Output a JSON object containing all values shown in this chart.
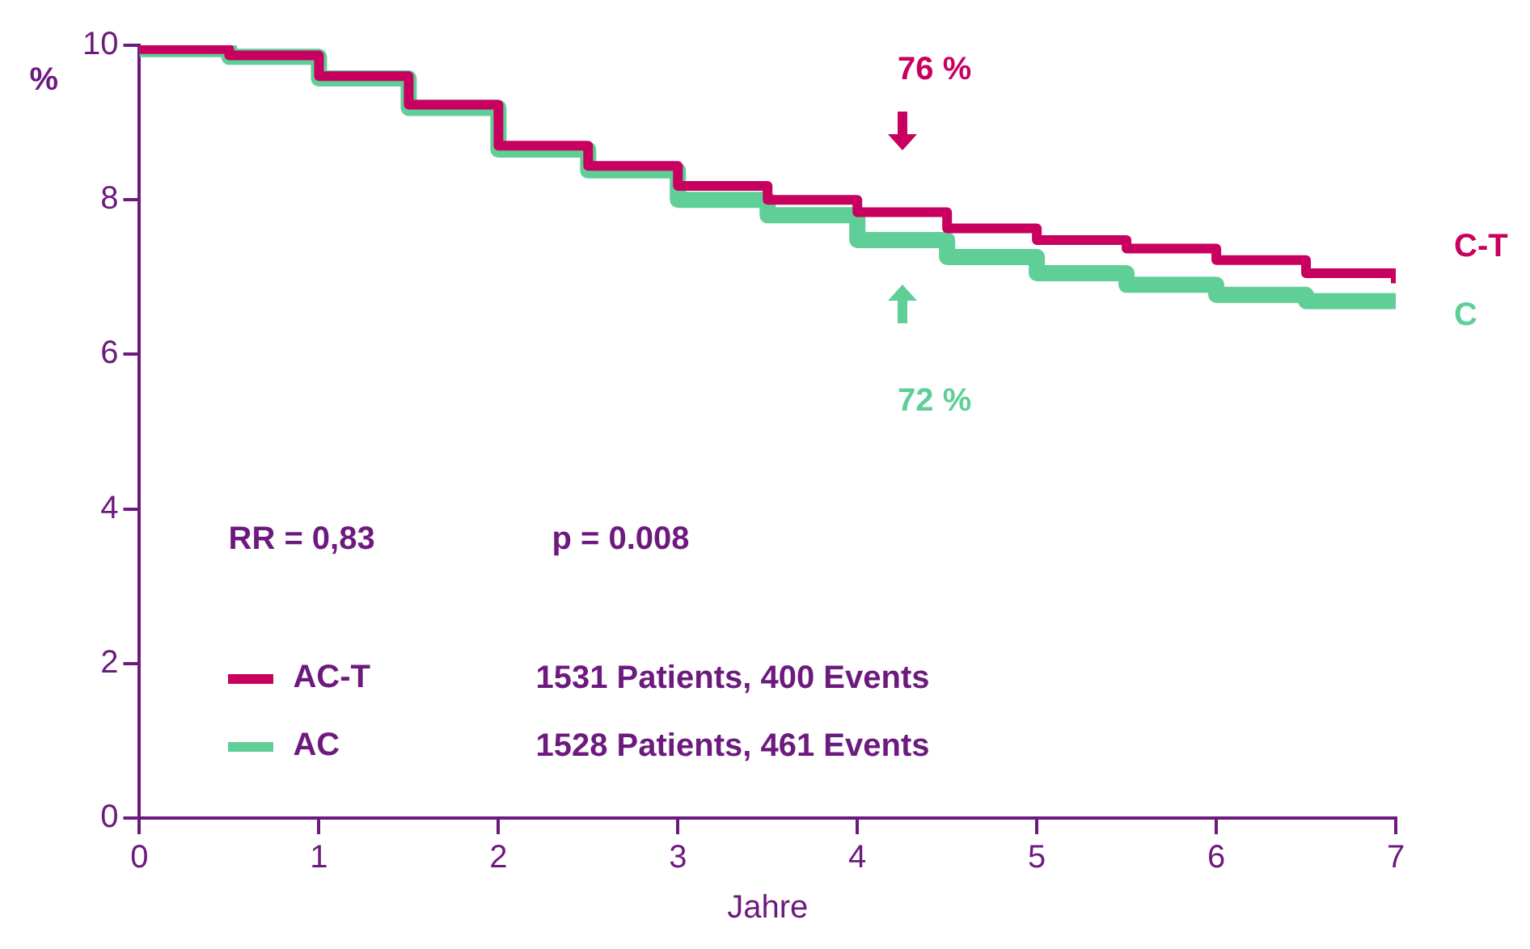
{
  "chart_data": {
    "type": "step",
    "xlabel": "Jahre",
    "ylabel": "%",
    "xlim": [
      0,
      7
    ],
    "xticks": [
      0,
      1,
      2,
      3,
      4,
      5,
      6,
      7
    ],
    "ylim": [
      0,
      10
    ],
    "yticks": [
      0,
      2,
      4,
      6,
      8,
      10
    ],
    "grid": false,
    "legend": "bottom left",
    "line_style": "solid",
    "x": [
      0,
      0.5,
      1,
      1.5,
      2,
      2.5,
      3,
      3.5,
      4,
      4.5,
      5,
      5.5,
      6,
      6.5,
      7
    ],
    "series": [
      {
        "name": "AC-T",
        "color": "#c8005f",
        "values": [
          9.95,
          9.87,
          9.6,
          9.23,
          8.7,
          8.44,
          8.18,
          8.0,
          7.84,
          7.63,
          7.48,
          7.37,
          7.22,
          7.05,
          6.92
        ]
      },
      {
        "name": "AC",
        "color": "#5fcf97",
        "values": [
          9.95,
          9.85,
          9.57,
          9.19,
          8.65,
          8.38,
          8.0,
          7.8,
          7.48,
          7.26,
          7.05,
          6.9,
          6.77,
          6.69,
          6.62
        ]
      }
    ],
    "annotations": [
      "76 %",
      "72 %",
      "C-T",
      "C",
      "RR = 0,83",
      "p = 0.008",
      "1531 Patients, 400 Events",
      "1528 Patients, 461 Events"
    ]
  }
}
